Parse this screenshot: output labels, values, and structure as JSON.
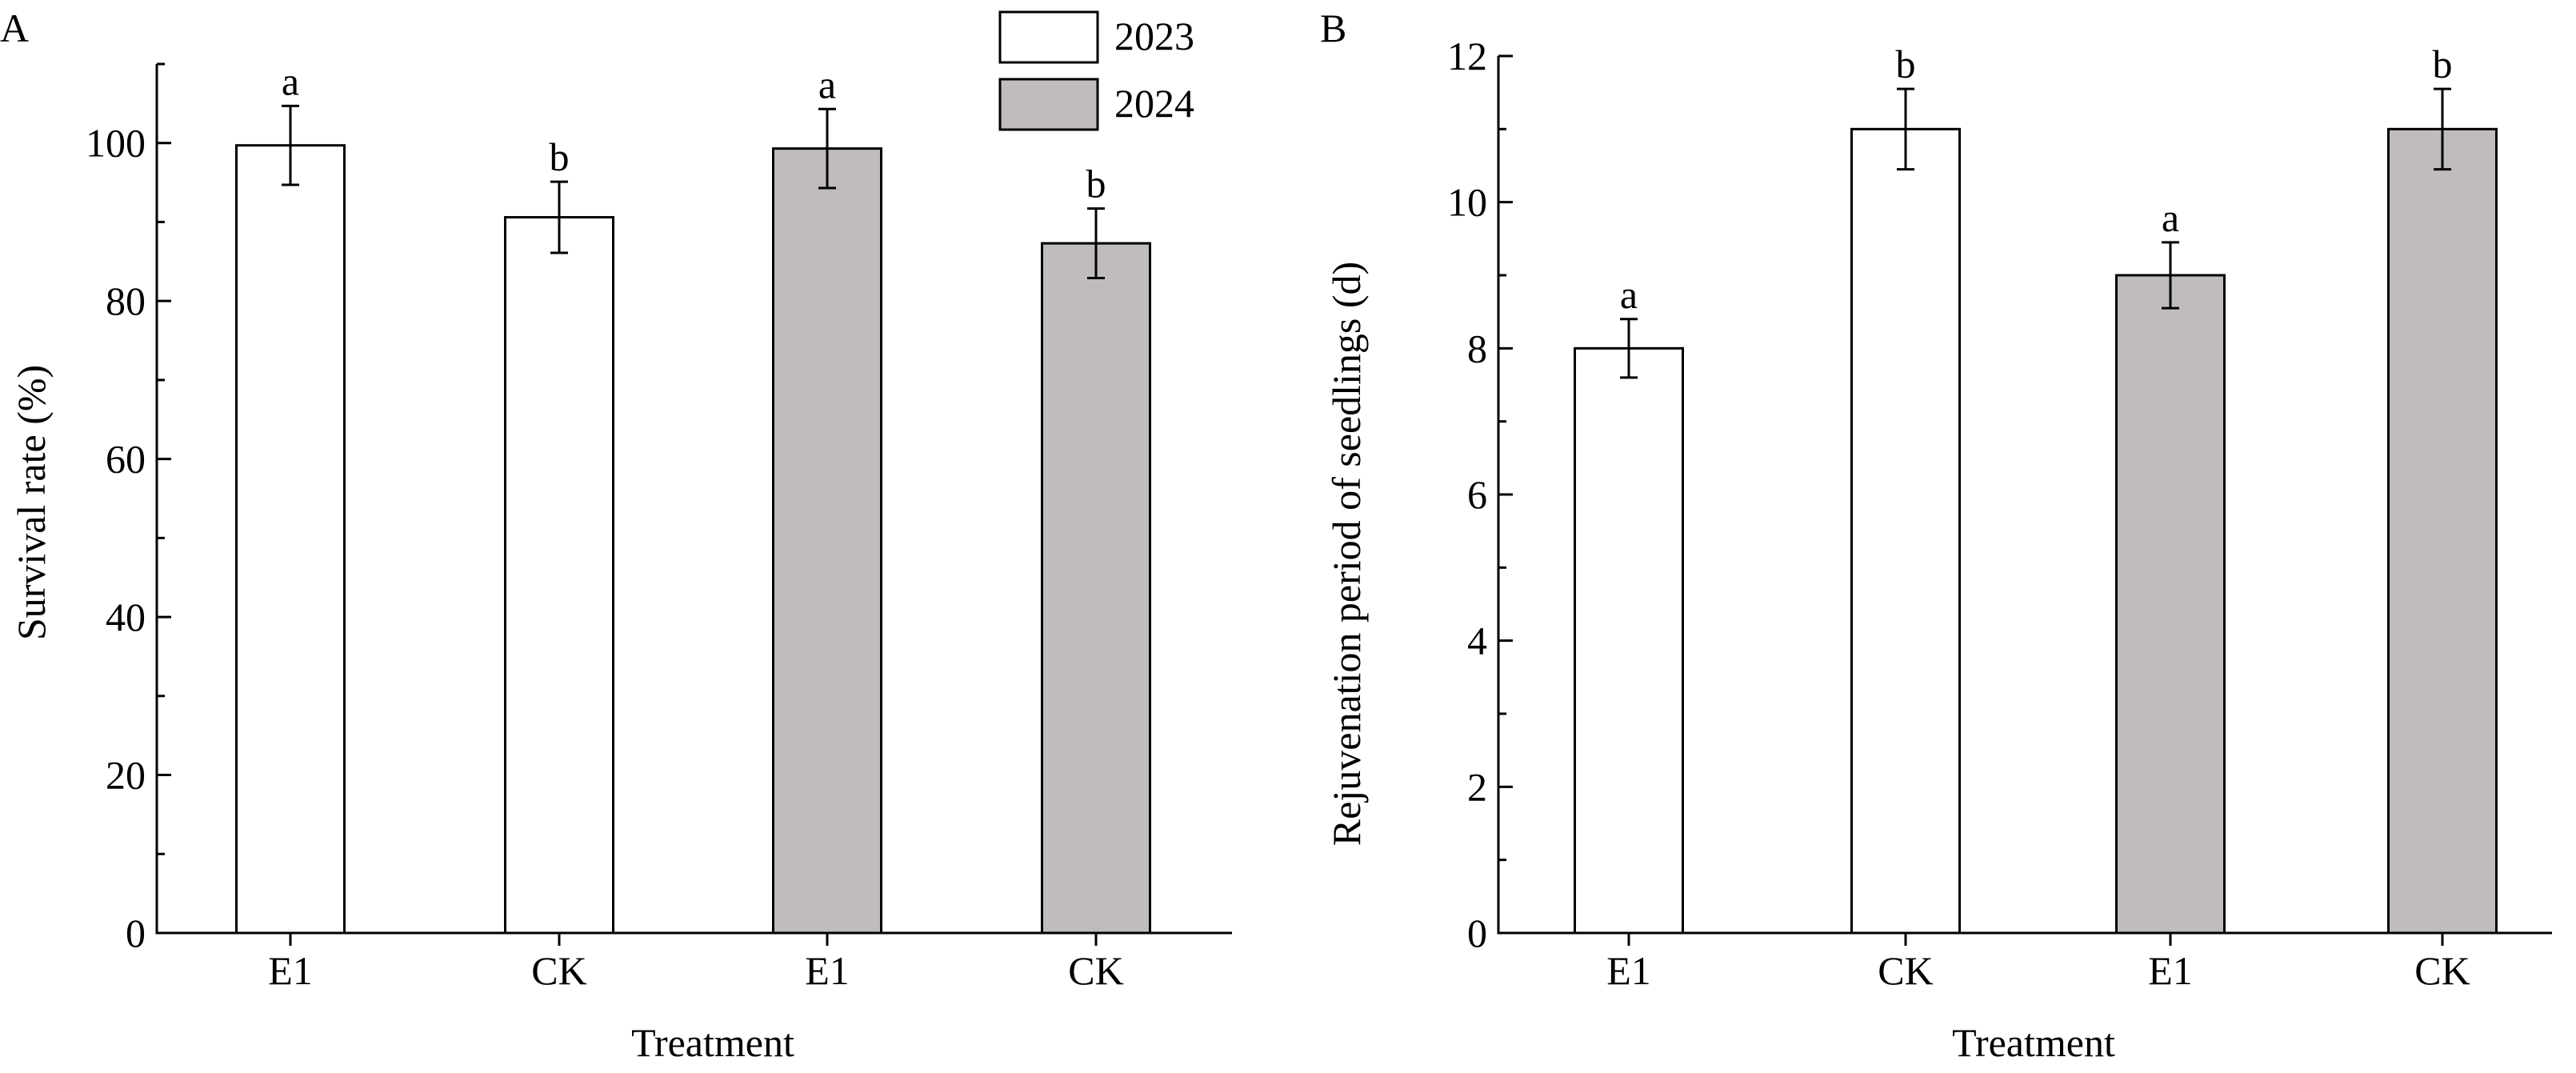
{
  "legend": {
    "position": "top-right of panel A",
    "entries": [
      {
        "name": "2023",
        "color": "#ffffff"
      },
      {
        "name": "2024",
        "color": "#bfbbbe"
      }
    ]
  },
  "chart_data": [
    {
      "panel": "A",
      "type": "bar",
      "xlabel": "Treatment",
      "ylabel": "Survival rate (%)",
      "ylim": [
        0,
        110
      ],
      "yticks": [
        0,
        20,
        40,
        60,
        80,
        100
      ],
      "grid": false,
      "bars": [
        {
          "category": "E1",
          "series": "2023",
          "value": 99.7,
          "error": 5.0,
          "letter": "a"
        },
        {
          "category": "CK",
          "series": "2023",
          "value": 90.6,
          "error": 4.5,
          "letter": "b"
        },
        {
          "category": "E1",
          "series": "2024",
          "value": 99.3,
          "error": 5.0,
          "letter": "a"
        },
        {
          "category": "CK",
          "series": "2024",
          "value": 87.3,
          "error": 4.4,
          "letter": "b"
        }
      ]
    },
    {
      "panel": "B",
      "type": "bar",
      "xlabel": "Treatment",
      "ylabel": "Rejuvenation period of seedlings (d)",
      "ylim": [
        0,
        12
      ],
      "yticks": [
        0,
        2,
        4,
        6,
        8,
        10,
        12
      ],
      "grid": false,
      "bars": [
        {
          "category": "E1",
          "series": "2023",
          "value": 8.0,
          "error": 0.4,
          "letter": "a"
        },
        {
          "category": "CK",
          "series": "2023",
          "value": 11.0,
          "error": 0.55,
          "letter": "b"
        },
        {
          "category": "E1",
          "series": "2024",
          "value": 9.0,
          "error": 0.45,
          "letter": "a"
        },
        {
          "category": "CK",
          "series": "2024",
          "value": 11.0,
          "error": 0.55,
          "letter": "b"
        }
      ]
    }
  ]
}
